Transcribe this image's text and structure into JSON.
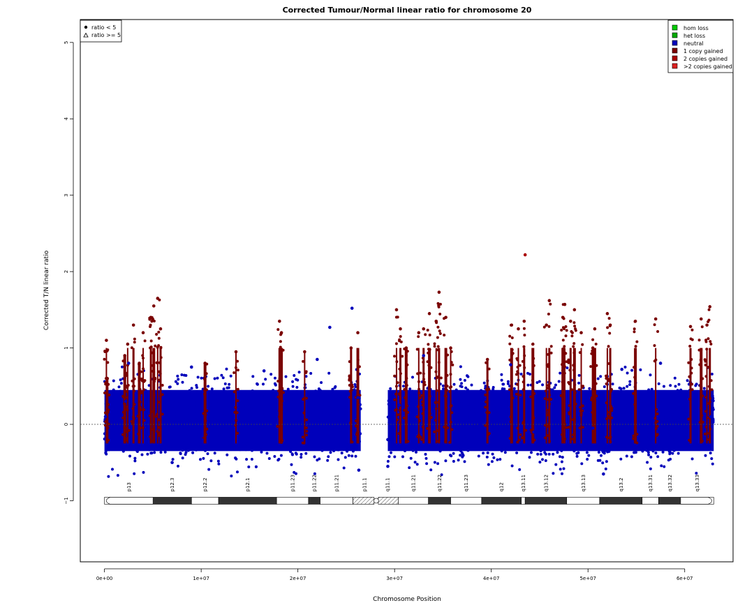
{
  "chart_data": {
    "type": "scatter",
    "title": "Corrected Tumour/Normal linear ratio for chromosome  20",
    "xlabel": "Chromosome Position",
    "ylabel": "Corrected T/N linear ratio",
    "xlim": [
      -2500000,
      65000000
    ],
    "ylim": [
      -1.8,
      5.3
    ],
    "x_ticks": [
      0,
      10000000,
      20000000,
      30000000,
      40000000,
      50000000,
      60000000
    ],
    "x_tick_labels": [
      "0e+00",
      "1e+07",
      "2e+07",
      "3e+07",
      "4e+07",
      "5e+07",
      "6e+07"
    ],
    "y_ticks": [
      -1,
      0,
      1,
      2,
      3,
      4,
      5
    ],
    "y_tick_labels": [
      "−1",
      "0",
      "1",
      "2",
      "3",
      "4",
      "5"
    ],
    "reference_line": 0,
    "grid": false,
    "shape_legend": {
      "position": "top-left",
      "entries": [
        {
          "symbol": "circle",
          "label": "ratio < 5"
        },
        {
          "symbol": "triangle",
          "label": "ratio >= 5"
        }
      ]
    },
    "color_legend": {
      "position": "top-right",
      "entries": [
        {
          "label": "hom loss",
          "color": "#00cc00"
        },
        {
          "label": "het loss",
          "color": "#00aa00"
        },
        {
          "label": "neutral",
          "color": "#0000bb"
        },
        {
          "label": "1 copy gained",
          "color": "#7a0000"
        },
        {
          "label": "2 copies gained",
          "color": "#aa0000"
        },
        {
          "label": ">2 copies gained",
          "color": "#dd2222"
        }
      ]
    },
    "series": [
      {
        "name": "neutral",
        "color": "#0000bb",
        "x": [
          100000,
          800000,
          1500000,
          2200000,
          3300000,
          4200000,
          6500000,
          7400000,
          8300000,
          9200000,
          10100000,
          11000000,
          12000000,
          12800000,
          14200000,
          15100000,
          16000000,
          16900000,
          17500000,
          19100000,
          20000000,
          21000000,
          22400000,
          23300000,
          24100000,
          25000000,
          26000000,
          26200000,
          29300000,
          30500000,
          36200000,
          37100000,
          38000000,
          38800000,
          39700000,
          40600000,
          41300000,
          44400000,
          45200000,
          46700000,
          50500000,
          51500000,
          53200000,
          54000000,
          55800000,
          56600000,
          58500000,
          59500000,
          60300000,
          61300000,
          62700000,
          2500000,
          9000000,
          16500000,
          22000000,
          33000000,
          42000000,
          53500000,
          57500000,
          26300000,
          29300000,
          51600000,
          7000000,
          23300000,
          25600000
        ],
        "y": [
          0.1,
          0.25,
          -0.1,
          0.3,
          0.05,
          -0.2,
          0.2,
          -0.05,
          0.3,
          0.15,
          -0.2,
          0.1,
          0.35,
          -0.1,
          0.2,
          0.05,
          -0.15,
          0.25,
          0.0,
          0.15,
          -0.25,
          0.3,
          0.1,
          -0.1,
          0.2,
          0.05,
          -0.3,
          0.35,
          -0.2,
          0.25,
          0.1,
          -0.15,
          0.3,
          0.0,
          -0.3,
          0.2,
          0.15,
          -0.1,
          0.2,
          0.05,
          -0.05,
          0.25,
          0.1,
          -0.2,
          0.3,
          0.0,
          -0.1,
          0.2,
          0.15,
          -0.25,
          0.1,
          0.8,
          0.75,
          0.7,
          0.85,
          0.9,
          0.78,
          0.72,
          0.8,
          -0.6,
          -0.55,
          -0.65,
          -0.5,
          1.27,
          1.52
        ]
      },
      {
        "name": "1 copy gained",
        "color": "#7a0000",
        "x": [
          200000,
          300000,
          2100000,
          2400000,
          3000000,
          3600000,
          4000000,
          4800000,
          5100000,
          5500000,
          5800000,
          10400000,
          13600000,
          18100000,
          18300000,
          20700000,
          25500000,
          26200000,
          30200000,
          30600000,
          31200000,
          32500000,
          33000000,
          33600000,
          34300000,
          34600000,
          35300000,
          35800000,
          39600000,
          42100000,
          42800000,
          43400000,
          44300000,
          45700000,
          46000000,
          47400000,
          47600000,
          48200000,
          48600000,
          49300000,
          50500000,
          50700000,
          52000000,
          52300000,
          54900000,
          57000000,
          60600000,
          61700000,
          62300000,
          62600000
        ],
        "y": [
          1.1,
          0.6,
          0.9,
          1.05,
          1.3,
          0.8,
          1.2,
          1.4,
          1.55,
          1.65,
          1.25,
          0.8,
          0.95,
          1.35,
          1.2,
          0.95,
          1.0,
          1.2,
          1.5,
          1.25,
          1.0,
          1.2,
          1.25,
          1.45,
          1.35,
          1.73,
          1.4,
          1.0,
          0.85,
          1.3,
          1.25,
          1.35,
          1.05,
          1.3,
          1.62,
          1.4,
          1.57,
          1.35,
          1.5,
          1.2,
          1.0,
          1.25,
          1.45,
          1.3,
          1.35,
          1.38,
          1.28,
          1.38,
          1.3,
          1.54
        ]
      },
      {
        "name": "2 copies gained",
        "color": "#aa0000",
        "x": [
          43500000
        ],
        "y": [
          2.22
        ]
      }
    ],
    "ideogram": {
      "band_labels": [
        "p13",
        "p12.3",
        "p12.2",
        "p12.1",
        "p11.23",
        "p11.22",
        "p11.21",
        "p11.1",
        "q11.1",
        "q11.21",
        "q11.22",
        "q11.23",
        "q12",
        "q13.11",
        "q13.12",
        "q13.13",
        "q13.2",
        "q13.31",
        "q13.32",
        "q13.33"
      ],
      "bands": [
        {
          "start": 0,
          "end": 5000000,
          "stain": "gneg"
        },
        {
          "start": 5000000,
          "end": 9000000,
          "stain": "gpos"
        },
        {
          "start": 9000000,
          "end": 11800000,
          "stain": "gneg"
        },
        {
          "start": 11800000,
          "end": 17800000,
          "stain": "gpos"
        },
        {
          "start": 17800000,
          "end": 21100000,
          "stain": "gneg"
        },
        {
          "start": 21100000,
          "end": 22300000,
          "stain": "gpos"
        },
        {
          "start": 22300000,
          "end": 25700000,
          "stain": "gneg"
        },
        {
          "start": 25700000,
          "end": 28100000,
          "stain": "acen"
        },
        {
          "start": 28100000,
          "end": 30400000,
          "stain": "acen"
        },
        {
          "start": 30400000,
          "end": 33500000,
          "stain": "gneg"
        },
        {
          "start": 33500000,
          "end": 35800000,
          "stain": "gpos"
        },
        {
          "start": 35800000,
          "end": 39000000,
          "stain": "gneg"
        },
        {
          "start": 39000000,
          "end": 43100000,
          "stain": "gpos"
        },
        {
          "start": 43100000,
          "end": 43500000,
          "stain": "gneg"
        },
        {
          "start": 43500000,
          "end": 47800000,
          "stain": "gpos"
        },
        {
          "start": 47800000,
          "end": 51200000,
          "stain": "gneg"
        },
        {
          "start": 51200000,
          "end": 55600000,
          "stain": "gpos"
        },
        {
          "start": 55600000,
          "end": 57300000,
          "stain": "gneg"
        },
        {
          "start": 57300000,
          "end": 59600000,
          "stain": "gpos"
        },
        {
          "start": 59600000,
          "end": 63000000,
          "stain": "gneg"
        }
      ]
    }
  }
}
